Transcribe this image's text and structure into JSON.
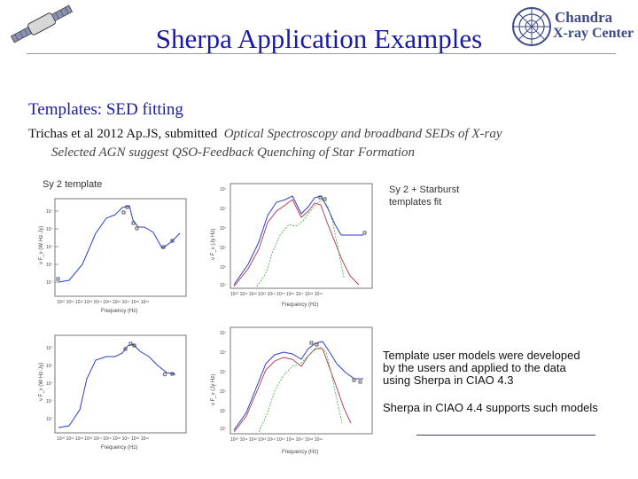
{
  "slide": {
    "title": "Sherpa Application Examples",
    "subtitle": "Templates:  SED fitting",
    "citation_authors": "Trichas et al 2012 Ap.JS, submitted",
    "citation_paper_line1": "Optical Spectroscopy and broadband SEDs of X-ray",
    "citation_paper_line2": "Selected AGN suggest QSO-Feedback Quenching of Star Formation"
  },
  "logo": {
    "line1": "Chandra",
    "line2": "X-ray Center"
  },
  "figures": {
    "sy2_label": "Sy 2 template",
    "sy2_starburst_label_line1": "Sy 2 + Starburst",
    "sy2_starburst_label_line2": "templates fit",
    "x_axis_label_1": "Frequency (Hz)",
    "x_axis_label_2": "Frequency (Hz)",
    "x_axis_label_3": "Frequency (Hz)",
    "x_axis_label_4": "Frequency (Hz)",
    "y_axis_label_left": "ν F_ν (W·Hz·Jy)",
    "y_axis_label_right": "ν F_ν (Jy Hz)"
  },
  "notes": {
    "line1": "Template user models were developed",
    "line2": "by the users and applied to the data",
    "line3": "using Sherpa in  CIAO 4.3",
    "line4": "Sherpa in CIAO 4.4 supports such models"
  },
  "colors": {
    "title": "#1a1aa8",
    "blue_model": "#2a3fd0",
    "red_model": "#b03050",
    "green_model": "#3caa3c"
  }
}
